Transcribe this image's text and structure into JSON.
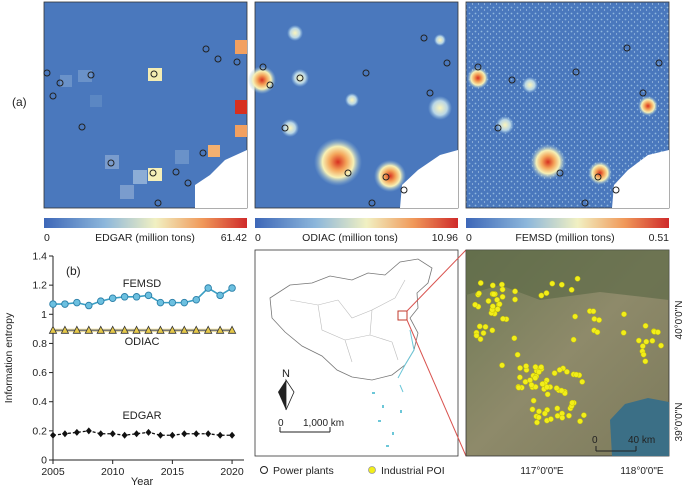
{
  "panel_a": {
    "label": "(a)",
    "maps": [
      {
        "colorbar_label": "EDGAR (million tons)",
        "min": "0",
        "max": "61.42"
      },
      {
        "colorbar_label": "ODIAC (million tons)",
        "min": "0",
        "max": "10.96"
      },
      {
        "colorbar_label": "FEMSD (million tons)",
        "min": "0",
        "max": "0.51"
      }
    ]
  },
  "panel_b": {
    "label": "(b)"
  },
  "china_map": {
    "north": "N",
    "scale_zero": "0",
    "scale_label": "1,000 km"
  },
  "satellite": {
    "scale_zero": "0",
    "scale_label": "40 km",
    "lat_labels": [
      "40°0'0\"N",
      "39°0'0\"N"
    ],
    "lon_labels": [
      "117°0'0\"E",
      "118°0'0\"E"
    ]
  },
  "legend": {
    "power_plants": "Power plants",
    "industrial_poi": "Industrial POI"
  },
  "colors": {
    "femsd": "#3a9fc4",
    "odiac": "#e5c84a",
    "edgar": "#111111",
    "poi": "#f2ee1a",
    "map_bg": "#4a78bd"
  },
  "chart_data": {
    "type": "line",
    "ylabel": "Information entropy",
    "xlabel": "Year",
    "xlim": [
      2005,
      2021
    ],
    "ylim": [
      0,
      1.4
    ],
    "xticks": [
      2005,
      2010,
      2015,
      2020
    ],
    "yticks": [
      0,
      0.2,
      0.4,
      0.6,
      0.8,
      1,
      1.2,
      1.4
    ],
    "x": [
      2005,
      2006,
      2007,
      2008,
      2009,
      2010,
      2011,
      2012,
      2013,
      2014,
      2015,
      2016,
      2017,
      2018,
      2019,
      2020
    ],
    "series": [
      {
        "name": "FEMSD",
        "values": [
          1.07,
          1.07,
          1.08,
          1.06,
          1.09,
          1.11,
          1.12,
          1.12,
          1.13,
          1.08,
          1.08,
          1.08,
          1.1,
          1.18,
          1.13,
          1.18
        ]
      },
      {
        "name": "ODIAC",
        "values": [
          0.89,
          0.89,
          0.89,
          0.89,
          0.89,
          0.89,
          0.89,
          0.89,
          0.89,
          0.89,
          0.89,
          0.89,
          0.89,
          0.89,
          0.89,
          0.89
        ]
      },
      {
        "name": "EDGAR",
        "values": [
          0.17,
          0.18,
          0.19,
          0.2,
          0.18,
          0.18,
          0.17,
          0.18,
          0.19,
          0.17,
          0.17,
          0.18,
          0.18,
          0.18,
          0.17,
          0.17
        ]
      }
    ]
  }
}
